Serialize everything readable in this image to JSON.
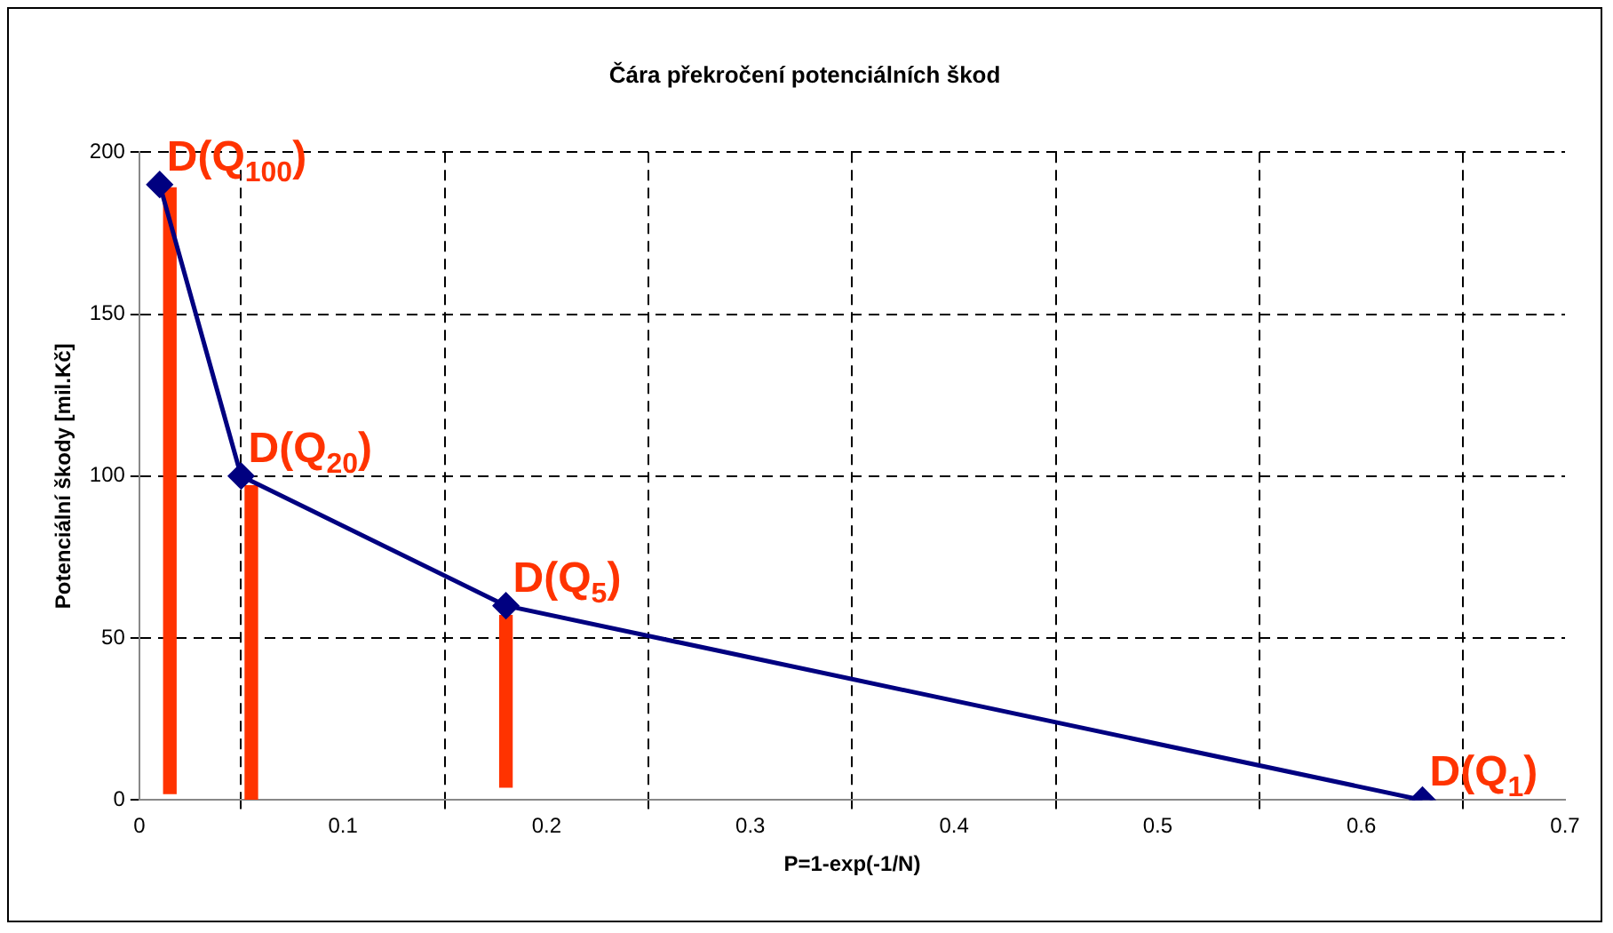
{
  "chart_data": {
    "type": "line",
    "title": "Čára překročení potenciálních škod",
    "xlabel": "P=1-exp(-1/N)",
    "ylabel": "Potenciální škody [mil.Kč]",
    "x": [
      0.01,
      0.05,
      0.18,
      0.63
    ],
    "series": [
      {
        "color": "#000080",
        "values": [
          190,
          100,
          60,
          0
        ],
        "marker": "diamond"
      },
      {
        "type": "bar",
        "color": "#ff3300",
        "x": [
          0.015,
          0.055,
          0.18
        ],
        "base": [
          2,
          0,
          4
        ],
        "values": [
          187,
          97,
          53
        ]
      }
    ],
    "xlim": [
      0,
      0.7
    ],
    "xticks": [
      0,
      0.1,
      0.2,
      0.3,
      0.4,
      0.5,
      0.6,
      0.7
    ],
    "ylim": [
      0,
      200
    ],
    "yticks": [
      0,
      50,
      100,
      150,
      200
    ],
    "grid": true,
    "legend": false,
    "line_style": "solid",
    "annotations": [
      {
        "text": "D(Q$_{100}$)",
        "x": 0.01,
        "y": 190
      },
      {
        "text": "D(Q$_{20}$)",
        "x": 0.05,
        "y": 100
      },
      {
        "text": "D(Q$_{5}$)",
        "x": 0.18,
        "y": 60
      },
      {
        "text": "D(Q$_{1}$)",
        "x": 0.63,
        "y": 0
      }
    ]
  }
}
